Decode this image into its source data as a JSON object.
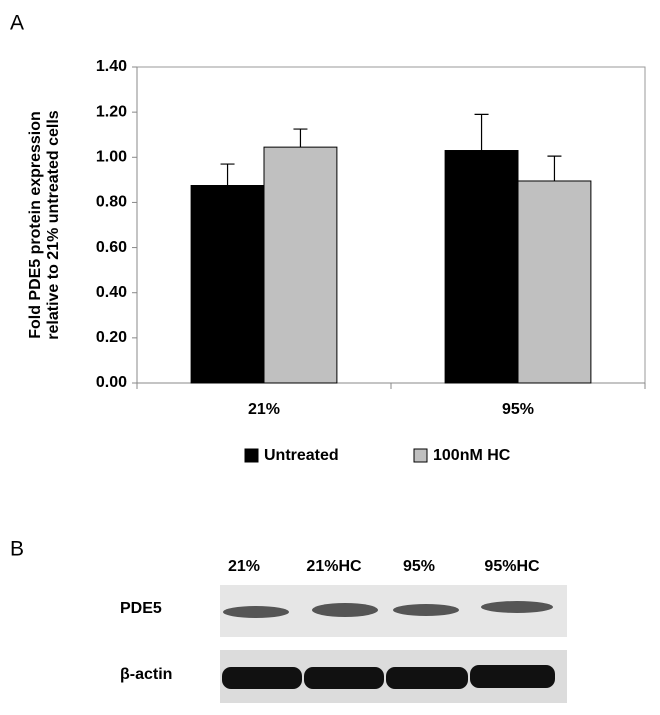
{
  "panel_labels": [
    "A",
    "B"
  ],
  "chart_data": {
    "type": "bar",
    "ylabel": [
      "Fold PDE5 protein expression",
      "relative to 21% untreated cells"
    ],
    "categories": [
      "21%",
      "95%"
    ],
    "series": [
      {
        "name": "Untreated",
        "color": "#000000",
        "values": [
          0.875,
          1.03
        ],
        "errors": [
          0.095,
          0.16
        ]
      },
      {
        "name": "100nM HC",
        "color": "#c0c0c0",
        "values": [
          1.045,
          0.895
        ],
        "errors": [
          0.08,
          0.11
        ]
      }
    ],
    "ylim": [
      0,
      1.4
    ],
    "yticks": [
      {
        "value": 0,
        "label": "0.00"
      },
      {
        "value": 0.2,
        "label": "0.20"
      },
      {
        "value": 0.4,
        "label": "0.40"
      },
      {
        "value": 0.6,
        "label": "0.60"
      },
      {
        "value": 0.8,
        "label": "0.80"
      },
      {
        "value": 1.0,
        "label": "1.00"
      },
      {
        "value": 1.2,
        "label": "1.20"
      },
      {
        "value": 1.4,
        "label": "1.40"
      }
    ]
  },
  "blot": {
    "lanes": [
      "21%",
      "21%HC",
      "95%",
      "95%HC"
    ],
    "rows": [
      "PDE5",
      "β-actin"
    ]
  }
}
